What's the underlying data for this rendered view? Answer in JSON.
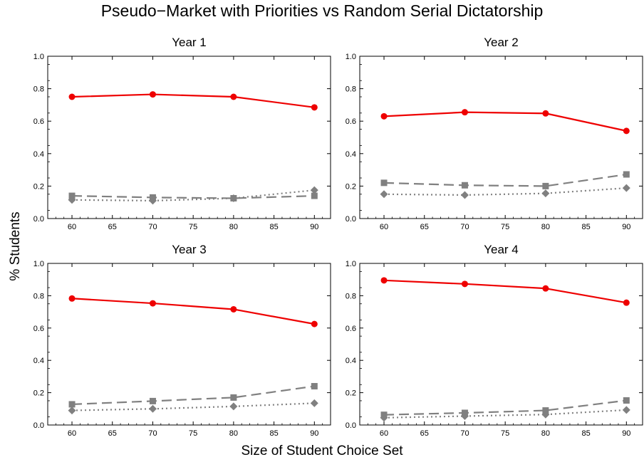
{
  "title": "Pseudo−Market with Priorities vs Random Serial Dictatorship",
  "xlabel": "Size of Student Choice Set",
  "ylabel": "% Students",
  "colors": {
    "series_a": "#ee0000",
    "series_b": "#808080",
    "series_c": "#808080"
  },
  "chart_data": [
    {
      "type": "line",
      "title": "Year 1",
      "x": [
        60,
        70,
        80,
        90
      ],
      "xlim": [
        57,
        92
      ],
      "ylim": [
        0,
        1
      ],
      "xticks": [
        60,
        65,
        70,
        75,
        80,
        85,
        90
      ],
      "yticks": [
        0.0,
        0.2,
        0.4,
        0.6,
        0.8,
        1.0
      ],
      "series": [
        {
          "style": "solid-circle",
          "values": [
            0.75,
            0.765,
            0.75,
            0.685
          ]
        },
        {
          "style": "dashed-square",
          "values": [
            0.14,
            0.13,
            0.125,
            0.14
          ]
        },
        {
          "style": "dotted-diamond",
          "values": [
            0.115,
            0.11,
            0.125,
            0.175
          ]
        }
      ]
    },
    {
      "type": "line",
      "title": "Year 2",
      "x": [
        60,
        70,
        80,
        90
      ],
      "xlim": [
        57,
        92
      ],
      "ylim": [
        0,
        1
      ],
      "xticks": [
        60,
        65,
        70,
        75,
        80,
        85,
        90
      ],
      "yticks": [
        0.0,
        0.2,
        0.4,
        0.6,
        0.8,
        1.0
      ],
      "series": [
        {
          "style": "solid-circle",
          "values": [
            0.63,
            0.655,
            0.648,
            0.54
          ]
        },
        {
          "style": "dashed-square",
          "values": [
            0.22,
            0.205,
            0.2,
            0.272
          ]
        },
        {
          "style": "dotted-diamond",
          "values": [
            0.15,
            0.145,
            0.155,
            0.188
          ]
        }
      ]
    },
    {
      "type": "line",
      "title": "Year 3",
      "x": [
        60,
        70,
        80,
        90
      ],
      "xlim": [
        57,
        92
      ],
      "ylim": [
        0,
        1
      ],
      "xticks": [
        60,
        65,
        70,
        75,
        80,
        85,
        90
      ],
      "yticks": [
        0.0,
        0.2,
        0.4,
        0.6,
        0.8,
        1.0
      ],
      "series": [
        {
          "style": "solid-circle",
          "values": [
            0.783,
            0.753,
            0.716,
            0.625
          ]
        },
        {
          "style": "dashed-square",
          "values": [
            0.128,
            0.148,
            0.17,
            0.24
          ]
        },
        {
          "style": "dotted-diamond",
          "values": [
            0.09,
            0.1,
            0.115,
            0.135
          ]
        }
      ]
    },
    {
      "type": "line",
      "title": "Year 4",
      "x": [
        60,
        70,
        80,
        90
      ],
      "xlim": [
        57,
        92
      ],
      "ylim": [
        0,
        1
      ],
      "xticks": [
        60,
        65,
        70,
        75,
        80,
        85,
        90
      ],
      "yticks": [
        0.0,
        0.2,
        0.4,
        0.6,
        0.8,
        1.0
      ],
      "series": [
        {
          "style": "solid-circle",
          "values": [
            0.895,
            0.873,
            0.845,
            0.757
          ]
        },
        {
          "style": "dashed-square",
          "values": [
            0.063,
            0.075,
            0.09,
            0.152
          ]
        },
        {
          "style": "dotted-diamond",
          "values": [
            0.045,
            0.055,
            0.065,
            0.093
          ]
        }
      ]
    }
  ]
}
